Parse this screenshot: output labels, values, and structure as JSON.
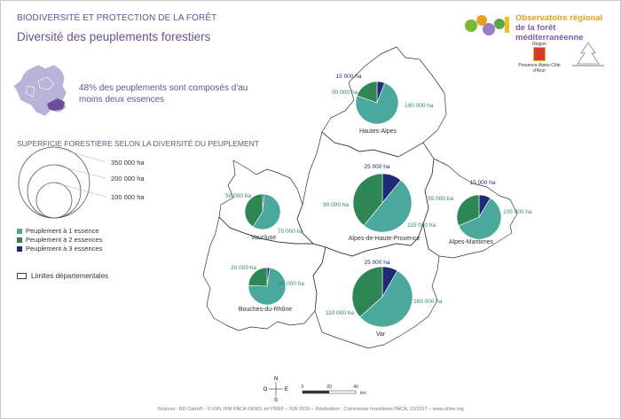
{
  "header": {
    "title": "BIODIVERSITÉ ET PROTECTION DE LA FORÊT",
    "subtitle": "Diversité des peuplements forestiers"
  },
  "intro_text": "48% des peuplements sont composés d'au moins deux essences",
  "legend": {
    "title": "SUPERFICIE FORESTIÈRE SELON LA DIVERSITÉ DU PEUPLEMENT",
    "sizes": [
      "350 000 ha",
      "200 000 ha",
      "100 000 ha"
    ],
    "items": [
      {
        "label": "Peuplement à 1 essence",
        "color": "#4aa89c"
      },
      {
        "label": "Peuplement à 2 essences",
        "color": "#2e8655"
      },
      {
        "label": "Peuplement à 3 essences",
        "color": "#1f2a78"
      }
    ],
    "limits": "Limites départementales"
  },
  "logo": {
    "line1": "Observatoire régional",
    "line2": "de la forêt méditerranéenne"
  },
  "region": {
    "word": "Région",
    "name": "Provence-Alpes-Côte d'Azur"
  },
  "departments": [
    {
      "name": "Hautes-Alpes",
      "values": [
        {
          "label": "190 000 ha",
          "v": 190000
        },
        {
          "label": "50 000 ha",
          "v": 50000
        },
        {
          "label": "15 000 ha",
          "v": 15000
        }
      ]
    },
    {
      "name": "Alpes-de-Haute-Provence",
      "values": [
        {
          "label": "115 000 ha",
          "v": 115000
        },
        {
          "label": "90 000 ha",
          "v": 90000
        },
        {
          "label": "25 000 ha",
          "v": 25000
        }
      ]
    },
    {
      "name": "Alpes-Maritimes",
      "values": [
        {
          "label": "105 000 ha",
          "v": 105000
        },
        {
          "label": "55 000 ha",
          "v": 55000
        },
        {
          "label": "15 000 ha",
          "v": 15000
        }
      ]
    },
    {
      "name": "Vaucluse",
      "values": [
        {
          "label": "70 000 ha",
          "v": 70000
        },
        {
          "label": "50 000 ha",
          "v": 50000
        },
        {
          "label": null,
          "v": 2000
        }
      ]
    },
    {
      "name": "Bouches-du-Rhône",
      "values": [
        {
          "label": "60 000 ha",
          "v": 60000
        },
        {
          "label": "20 000 ha",
          "v": 20000
        },
        {
          "label": null,
          "v": 2000
        }
      ]
    },
    {
      "name": "Var",
      "values": [
        {
          "label": "165 000 ha",
          "v": 165000
        },
        {
          "label": "110 000 ha",
          "v": 110000
        },
        {
          "label": "25 000 ha",
          "v": 25000
        }
      ]
    }
  ],
  "compass": {
    "n": "N",
    "e": "E",
    "s": "S",
    "o": "O"
  },
  "scale": {
    "ticks": [
      "0",
      "20",
      "40"
    ],
    "unit": "km"
  },
  "credits": "Sources : BD Carto® - © IGN, IFM PACA ©ENO, inf PREF – IGN 2016 – Réalisation : Communes forestières PACA, 12/2017 – www.ofme.org"
}
